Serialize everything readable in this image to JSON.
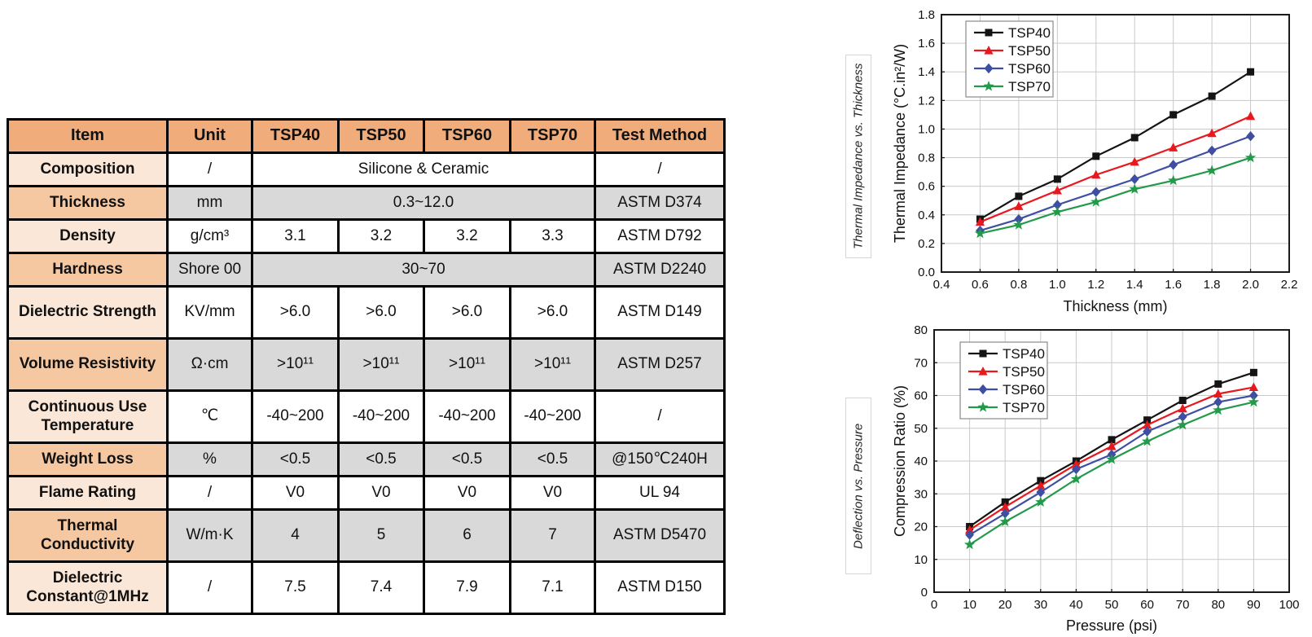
{
  "table": {
    "headers": [
      "Item",
      "Unit",
      "TSP40",
      "TSP50",
      "TSP60",
      "TSP70",
      "Test Method"
    ],
    "rows": [
      {
        "item": "Composition",
        "unit": "/",
        "values": "Silicone & Ceramic",
        "test": "/"
      },
      {
        "item": "Thickness",
        "unit": "mm",
        "values": "0.3~12.0",
        "test": "ASTM D374"
      },
      {
        "item": "Density",
        "unit": "g/cm³",
        "values": [
          "3.1",
          "3.2",
          "3.2",
          "3.3"
        ],
        "test": "ASTM D792"
      },
      {
        "item": "Hardness",
        "unit": "Shore 00",
        "values": "30~70",
        "test": "ASTM D2240"
      },
      {
        "item": "Dielectric Strength",
        "unit": "KV/mm",
        "values": [
          ">6.0",
          ">6.0",
          ">6.0",
          ">6.0"
        ],
        "test": "ASTM D149"
      },
      {
        "item": "Volume Resistivity",
        "unit": "Ω·cm",
        "values": [
          ">10¹¹",
          ">10¹¹",
          ">10¹¹",
          ">10¹¹"
        ],
        "test": "ASTM D257"
      },
      {
        "item": "Continuous Use Temperature",
        "unit": "℃",
        "values": [
          "-40~200",
          "-40~200",
          "-40~200",
          "-40~200"
        ],
        "test": "/"
      },
      {
        "item": "Weight Loss",
        "unit": "%",
        "values": [
          "<0.5",
          "<0.5",
          "<0.5",
          "<0.5"
        ],
        "test": "@150℃240H"
      },
      {
        "item": "Flame Rating",
        "unit": "/",
        "values": [
          "V0",
          "V0",
          "V0",
          "V0"
        ],
        "test": "UL 94"
      },
      {
        "item": "Thermal Conductivity",
        "unit": "W/m·K",
        "values": [
          "4",
          "5",
          "6",
          "7"
        ],
        "test": "ASTM D5470"
      },
      {
        "item": "Dielectric Constant@1MHz",
        "unit": "/",
        "values": [
          "7.5",
          "7.4",
          "7.9",
          "7.1"
        ],
        "test": "ASTM D150"
      }
    ]
  },
  "colors": {
    "header_bg": "#f1ac7b",
    "item_light": "#fbe7d7",
    "item_dark": "#f5c8a2",
    "row_gray": "#d9d9d9",
    "row_white": "#ffffff",
    "grid": "#c9c9c9",
    "series": {
      "TSP40": "#141414",
      "TSP50": "#e8191e",
      "TSP60": "#3e4fa3",
      "TSP70": "#23994a"
    }
  },
  "chart_data": [
    {
      "type": "line",
      "side_label": "Thermal Impedance vs. Thickness",
      "xlabel": "Thickness (mm)",
      "ylabel": "Thermal Impedance (°C.in²/W)",
      "xlim": [
        0.4,
        2.2
      ],
      "ylim": [
        0.0,
        1.8
      ],
      "xtick_step": 0.2,
      "ytick_step": 0.2,
      "tick_decimals": 1,
      "grid": true,
      "legend_position": "top-left",
      "x": [
        0.6,
        0.8,
        1.0,
        1.2,
        1.4,
        1.6,
        1.8,
        2.0
      ],
      "series": [
        {
          "name": "TSP40",
          "marker": "square",
          "values": [
            0.37,
            0.53,
            0.65,
            0.81,
            0.94,
            1.1,
            1.23,
            1.4
          ]
        },
        {
          "name": "TSP50",
          "marker": "triangle",
          "values": [
            0.35,
            0.46,
            0.57,
            0.68,
            0.77,
            0.87,
            0.97,
            1.09
          ]
        },
        {
          "name": "TSP60",
          "marker": "diamond",
          "values": [
            0.29,
            0.37,
            0.47,
            0.56,
            0.65,
            0.75,
            0.85,
            0.95
          ]
        },
        {
          "name": "TSP70",
          "marker": "star",
          "values": [
            0.27,
            0.33,
            0.42,
            0.49,
            0.58,
            0.64,
            0.71,
            0.8
          ]
        }
      ]
    },
    {
      "type": "line",
      "side_label": "Deflection vs. Pressure",
      "xlabel": "Pressure (psi)",
      "ylabel": "Compression Ratio (%)",
      "xlim": [
        0,
        100
      ],
      "ylim": [
        0,
        80
      ],
      "xtick_step": 10,
      "ytick_step": 10,
      "tick_decimals": 0,
      "grid": true,
      "legend_position": "top-left",
      "x": [
        10,
        20,
        30,
        40,
        50,
        60,
        70,
        80,
        90
      ],
      "series": [
        {
          "name": "TSP40",
          "marker": "square",
          "values": [
            20.0,
            27.5,
            34.0,
            40.0,
            46.5,
            52.5,
            58.5,
            63.5,
            67.0
          ]
        },
        {
          "name": "TSP50",
          "marker": "triangle",
          "values": [
            19.0,
            26.0,
            32.5,
            39.0,
            44.5,
            51.0,
            56.0,
            60.5,
            62.5
          ]
        },
        {
          "name": "TSP60",
          "marker": "diamond",
          "values": [
            17.5,
            24.0,
            30.5,
            37.5,
            42.0,
            49.0,
            53.5,
            58.0,
            60.0
          ]
        },
        {
          "name": "TSP70",
          "marker": "star",
          "values": [
            14.5,
            21.5,
            27.5,
            34.5,
            40.5,
            46.0,
            51.0,
            55.5,
            58.0
          ]
        }
      ]
    }
  ]
}
